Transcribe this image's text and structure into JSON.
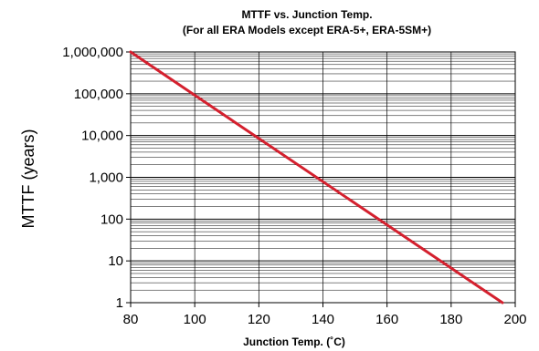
{
  "chart_data": {
    "type": "line",
    "title": "MTTF vs. Junction Temp.",
    "subtitle": "(For all ERA Models except ERA-5+, ERA-5SM+)",
    "xlabel": "Junction Temp. (˚C)",
    "ylabel": "MTTF (years)",
    "xlim": [
      80,
      200
    ],
    "ylim": [
      1,
      1000000
    ],
    "yscale": "log",
    "grid": true,
    "x_ticks": [
      80,
      100,
      120,
      140,
      160,
      180,
      200
    ],
    "x_tick_labels": [
      "80",
      "100",
      "120",
      "140",
      "160",
      "180",
      "200"
    ],
    "y_ticks": [
      1,
      10,
      100,
      1000,
      10000,
      100000,
      1000000
    ],
    "y_tick_labels": [
      "1",
      "10",
      "100",
      "1,000",
      "10,000",
      "100,000",
      "1,000,000"
    ],
    "series": [
      {
        "color": "#d4202e",
        "x": [
          80,
          196
        ],
        "y": [
          1000000,
          1
        ]
      }
    ]
  }
}
